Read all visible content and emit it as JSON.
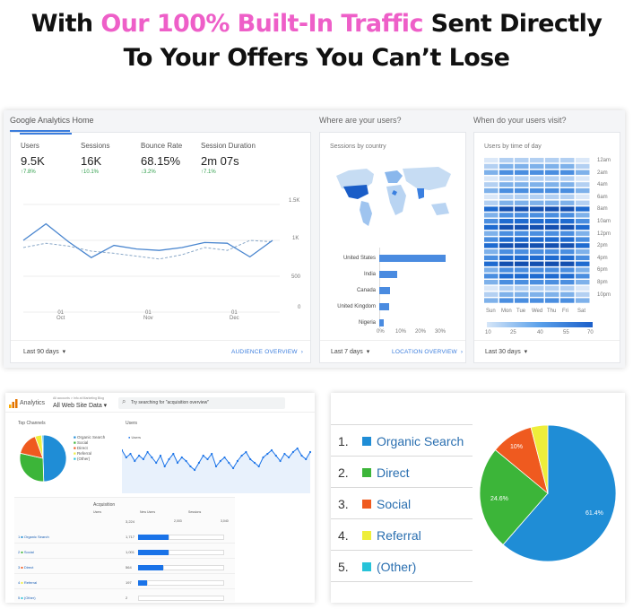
{
  "headline": {
    "line1_pre": "With ",
    "line1_highlight": "Our 100% Built-In Traffic",
    "line1_post": " Sent Directly",
    "line2": "To Your Offers You Can’t Lose",
    "highlight_color": "#ee5fc8"
  },
  "ga_home": {
    "title": "Google Analytics Home",
    "metrics": [
      {
        "label": "Users",
        "value": "9.5K",
        "change": "↑7.8%"
      },
      {
        "label": "Sessions",
        "value": "16K",
        "change": "↑10.1%"
      },
      {
        "label": "Bounce Rate",
        "value": "68.15%",
        "change": "↓3.2%"
      },
      {
        "label": "Session Duration",
        "value": "2m 07s",
        "change": "↑7.1%"
      }
    ],
    "y_ticks": [
      "1.5K",
      "1K",
      "500",
      "0"
    ],
    "x_ticks": [
      {
        "day": "01",
        "month": "Oct"
      },
      {
        "day": "01",
        "month": "Nov"
      },
      {
        "day": "01",
        "month": "Dec"
      }
    ],
    "range_label": "Last 90 days",
    "link": "AUDIENCE OVERVIEW",
    "series_current": [
      1000,
      1230,
      980,
      760,
      930,
      880,
      860,
      900,
      970,
      960,
      770,
      1000
    ],
    "series_previous": [
      900,
      960,
      920,
      850,
      820,
      780,
      740,
      800,
      900,
      860,
      1000,
      980
    ]
  },
  "where_users": {
    "title": "Where are your users?",
    "subtitle": "Sessions by country",
    "countries": [
      "United States",
      "India",
      "Canada",
      "United Kingdom",
      "Nigeria"
    ],
    "shares": [
      0.28,
      0.075,
      0.045,
      0.04,
      0.02
    ],
    "x_ticks": [
      "0%",
      "10%",
      "20%",
      "30%"
    ],
    "range_label": "Last 7 days",
    "link": "LOCATION OVERVIEW"
  },
  "when_users": {
    "title": "When do your users visit?",
    "subtitle": "Users by time of day",
    "hours": [
      "12am",
      "2am",
      "4am",
      "6am",
      "8am",
      "10am",
      "12pm",
      "2pm",
      "4pm",
      "6pm",
      "8pm",
      "10pm"
    ],
    "days": [
      "Sun",
      "Mon",
      "Tue",
      "Wed",
      "Thu",
      "Fri",
      "Sat"
    ],
    "scale": [
      "10",
      "25",
      "40",
      "55",
      "70"
    ],
    "range_label": "Last 30 days"
  },
  "analytics_app": {
    "app_name": "Analytics",
    "account_line": "All accounts > Info at Marketing Blog",
    "property": "All Web Site Data ▾",
    "search_placeholder": "Try searching for \"acquisition overview\"",
    "channels_title": "Top Channels",
    "users_title": "Users",
    "users_legend": "Users",
    "channel_legend": [
      "Organic Search",
      "Social",
      "Direct",
      "Referral",
      "(Other)"
    ],
    "acquisition_title": "Acquisition",
    "col_users": "Users",
    "col_new_users": "New Users",
    "col_sessions": "Sessions",
    "total": "3,224",
    "sessions_ticks": [
      "2,003",
      "3,040"
    ],
    "rows": [
      {
        "label": "Organic Search",
        "value": "1,717"
      },
      {
        "label": "Social",
        "value": "1,001"
      },
      {
        "label": "Direct",
        "value": "564"
      },
      {
        "label": "Referral",
        "value": "197"
      },
      {
        "label": "(Other)",
        "value": "2"
      }
    ]
  },
  "channel_breakdown": {
    "items": [
      {
        "num": "1.",
        "label": "Organic Search",
        "color": "#1f8dd6"
      },
      {
        "num": "2.",
        "label": "Direct",
        "color": "#3cb539"
      },
      {
        "num": "3.",
        "label": "Social",
        "color": "#ef5a1f"
      },
      {
        "num": "4.",
        "label": "Referral",
        "color": "#eeee3a"
      },
      {
        "num": "5.",
        "label": "(Other)",
        "color": "#27c3d9"
      }
    ],
    "pie_labels": [
      "61.4%",
      "24.6%",
      "10%"
    ]
  },
  "chart_data": [
    {
      "type": "pie",
      "labels": [
        "Organic Search",
        "Direct",
        "Social",
        "Referral"
      ],
      "values": [
        61.4,
        24.6,
        10,
        4
      ]
    },
    {
      "type": "bar",
      "categories": [
        "United States",
        "India",
        "Canada",
        "United Kingdom",
        "Nigeria"
      ],
      "values": [
        0.28,
        0.075,
        0.045,
        0.04,
        0.02
      ]
    }
  ]
}
